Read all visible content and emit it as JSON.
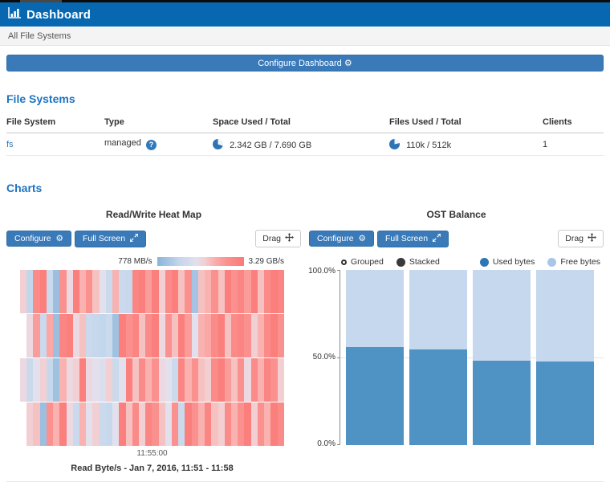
{
  "header": {
    "title": "Dashboard"
  },
  "breadcrumb": {
    "label": "All File Systems"
  },
  "configure_dashboard": {
    "label": "Configure Dashboard"
  },
  "colors": {
    "header_bg": "#0768b1",
    "button_blue": "#3a7ab9",
    "heading_blue": "#1d74bf",
    "link_blue": "#3079bd",
    "pie_blue": "#2e73b4",
    "used_bar": "#4f93c4",
    "free_bar": "#c5d8ee",
    "legend_used_dot": "#2d77b5",
    "legend_free_dot": "#a9c6e8"
  },
  "file_systems": {
    "heading": "File Systems",
    "columns": [
      "File System",
      "Type",
      "Space Used / Total",
      "Files Used / Total",
      "Clients"
    ],
    "rows": [
      {
        "name": "fs",
        "type": "managed",
        "space": "2.342 GB / 7.690 GB",
        "space_used_pct": 30.5,
        "files": "110k / 512k",
        "files_used_pct": 21.5,
        "clients": "1"
      }
    ]
  },
  "charts": {
    "heading": "Charts",
    "buttons": {
      "configure": "Configure",
      "full_screen": "Full Screen",
      "drag": "Drag"
    },
    "heatmap": {
      "title": "Read/Write Heat Map",
      "caption": "Read Byte/s - Jan 7, 2016, 11:51 - 11:58"
    },
    "ost": {
      "title": "OST Balance",
      "mode_options": [
        {
          "label": "Grouped",
          "selected": false
        },
        {
          "label": "Stacked",
          "selected": true
        }
      ],
      "legend": [
        {
          "label": "Used bytes",
          "color": "#2d77b5"
        },
        {
          "label": "Free bytes",
          "color": "#a9c6e8"
        }
      ],
      "y_ticks": [
        "100.0%",
        "50.0%",
        "0.0%"
      ]
    }
  },
  "chart_data": [
    {
      "type": "heatmap",
      "title": "Read/Write Heat Map",
      "series_label": "Read Byte/s",
      "time_range": "Jan 7, 2016, 11:51 - 11:58",
      "color_min_label": "778 MB/s",
      "color_max_label": "3.29 GB/s",
      "x_tick_labels": [
        "11:55:00"
      ],
      "colorscale": [
        [
          0,
          "#8ab4da"
        ],
        [
          0.25,
          "#c2d6ec"
        ],
        [
          0.45,
          "#e3e0ed"
        ],
        [
          0.55,
          "#f2cfd2"
        ],
        [
          0.65,
          "#f9b2b0"
        ],
        [
          0.8,
          "#fb918e"
        ],
        [
          1,
          "#fa7977"
        ]
      ],
      "rows": [
        [
          0.55,
          0.25,
          0.85,
          0.95,
          0.3,
          0.08,
          0.8,
          0.5,
          0.95,
          0.65,
          0.8,
          0.6,
          0.45,
          0.3,
          0.65,
          0.3,
          0.28,
          0.9,
          0.95,
          0.75,
          0.95,
          0.55,
          0.85,
          0.95,
          0.6,
          0.8,
          0.12,
          0.6,
          0.65,
          0.8,
          0.6,
          0.95,
          0.8,
          0.9,
          0.75,
          0.95,
          0.6,
          0.85,
          0.95,
          0.9
        ],
        [
          null,
          0.5,
          0.75,
          0.3,
          0.7,
          0.08,
          0.9,
          0.95,
          0.5,
          0.6,
          0.3,
          0.28,
          0.25,
          0.3,
          0.1,
          0.95,
          0.8,
          0.9,
          0.6,
          0.85,
          0.95,
          0.5,
          0.8,
          0.6,
          0.95,
          0.75,
          0.45,
          0.65,
          0.7,
          0.85,
          0.95,
          0.6,
          0.85,
          0.9,
          0.8,
          0.55,
          0.65,
          0.85,
          0.95,
          0.8
        ],
        [
          0.5,
          0.3,
          0.45,
          0.55,
          0.28,
          0.1,
          0.65,
          0.5,
          0.55,
          0.95,
          0.5,
          0.45,
          0.4,
          0.55,
          0.3,
          0.45,
          0.95,
          0.6,
          0.85,
          0.65,
          0.8,
          0.5,
          0.45,
          0.3,
          0.9,
          0.65,
          0.8,
          0.6,
          0.55,
          0.85,
          0.95,
          0.75,
          0.6,
          0.8,
          0.5,
          0.85,
          0.65,
          0.9,
          0.8,
          0.55
        ],
        [
          null,
          0.55,
          0.6,
          0.08,
          0.8,
          0.65,
          0.95,
          0.5,
          0.3,
          0.65,
          0.45,
          0.55,
          0.3,
          0.28,
          0.45,
          0.95,
          0.6,
          0.85,
          0.55,
          0.9,
          0.8,
          0.6,
          0.45,
          0.8,
          0.3,
          0.95,
          0.8,
          0.65,
          0.9,
          0.6,
          0.55,
          0.85,
          0.65,
          0.8,
          0.95,
          0.55,
          0.8,
          0.65,
          0.95,
          0.85
        ]
      ]
    },
    {
      "type": "bar",
      "stacked": true,
      "title": "OST Balance",
      "ylim": [
        0,
        100
      ],
      "y_tick_labels": [
        "0.0%",
        "50.0%",
        "100.0%"
      ],
      "grid": "horizontal-50%",
      "legend_position": "top",
      "series": [
        {
          "name": "Used bytes",
          "color": "#4f93c4",
          "values": [
            56,
            54.5,
            48,
            47.5
          ]
        },
        {
          "name": "Free bytes",
          "color": "#c5d8ee",
          "values": [
            44,
            45.5,
            52,
            52.5
          ]
        }
      ]
    }
  ]
}
